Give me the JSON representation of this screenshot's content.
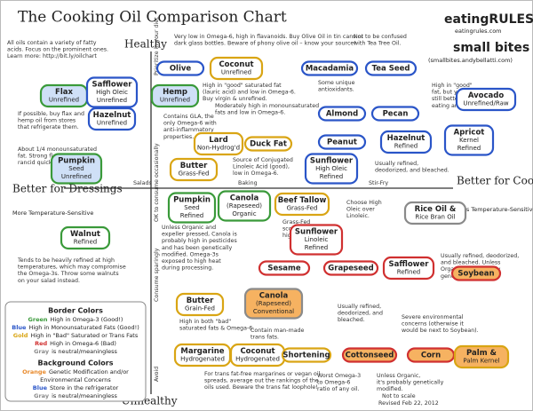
{
  "title": "The Cooking Oil Comparison Chart",
  "logos": {
    "brand1": "eatingRULES",
    "site1": "eatingrules.com",
    "brand2": "small bites",
    "site2": "(smallbites.andybellatti.com)"
  },
  "axes": {
    "top": "Healthy",
    "bottom": "Unhealthy",
    "left": "Better for Dressings",
    "left_sub": "More Temperature-Sensitive",
    "right": "Better for Cooking",
    "right_sub": "Less Temperature-Sensitive",
    "h_marks": [
      "Salads",
      "Baking",
      "Stir-Fry"
    ],
    "v_marks": [
      "Prioritize in your diet",
      "OK to consume occasionally",
      "Consume sparingly",
      "Avoid"
    ]
  },
  "nodes": [
    {
      "lines": [
        "Olive"
      ],
      "border": "blue",
      "fill": "white"
    },
    {
      "lines": [
        "Coconut",
        "Unrefined"
      ],
      "border": "gold",
      "fill": "white"
    },
    {
      "lines": [
        "Macadamia"
      ],
      "border": "blue",
      "fill": "white"
    },
    {
      "lines": [
        "Tea Seed"
      ],
      "border": "blue",
      "fill": "white"
    },
    {
      "lines": [
        "Flax",
        "Unrefined"
      ],
      "border": "green",
      "fill": "blue"
    },
    {
      "lines": [
        "Safflower",
        "High Oleic",
        "Unrefined"
      ],
      "border": "blue",
      "fill": "white"
    },
    {
      "lines": [
        "Hemp",
        "Unrefined"
      ],
      "border": "green",
      "fill": "blue"
    },
    {
      "lines": [
        "Hazelnut",
        "Unrefined"
      ],
      "border": "blue",
      "fill": "white"
    },
    {
      "lines": [
        "Avocado",
        "Unrefined/Raw"
      ],
      "border": "blue",
      "fill": "white"
    },
    {
      "lines": [
        "Almond"
      ],
      "border": "blue",
      "fill": "white"
    },
    {
      "lines": [
        "Pecan"
      ],
      "border": "blue",
      "fill": "white"
    },
    {
      "lines": [
        "Lard",
        "Non-Hydrog'd"
      ],
      "border": "gold",
      "fill": "white"
    },
    {
      "lines": [
        "Duck Fat"
      ],
      "border": "gold",
      "fill": "white"
    },
    {
      "lines": [
        "Peanut"
      ],
      "border": "blue",
      "fill": "white"
    },
    {
      "lines": [
        "Hazelnut",
        "Refined"
      ],
      "border": "blue",
      "fill": "white"
    },
    {
      "lines": [
        "Apricot",
        "Kernel",
        "Refined"
      ],
      "border": "blue",
      "fill": "white"
    },
    {
      "lines": [
        "Pumpkin",
        "Seed",
        "Unrefined"
      ],
      "border": "green",
      "fill": "blue"
    },
    {
      "lines": [
        "Butter",
        "Grass-Fed"
      ],
      "border": "gold",
      "fill": "white"
    },
    {
      "lines": [
        "Sunflower",
        "High Oleic",
        "Refined"
      ],
      "border": "blue",
      "fill": "white"
    },
    {
      "lines": [
        "Pumpkin",
        "Seed",
        "Refined"
      ],
      "border": "green",
      "fill": "white"
    },
    {
      "lines": [
        "Canola",
        "(Rapeseed)",
        "Organic"
      ],
      "border": "green",
      "fill": "white"
    },
    {
      "lines": [
        "Beef Tallow",
        "Grass-Fed"
      ],
      "border": "gold",
      "fill": "white"
    },
    {
      "lines": [
        "Rice Oil &",
        "Rice Bran Oil"
      ],
      "border": "gray",
      "fill": "white"
    },
    {
      "lines": [
        "Sunflower",
        "Linoleic",
        "Refined"
      ],
      "border": "red",
      "fill": "white"
    },
    {
      "lines": [
        "Walnut",
        "Refined"
      ],
      "border": "green",
      "fill": "white"
    },
    {
      "lines": [
        "Sesame"
      ],
      "border": "red",
      "fill": "white"
    },
    {
      "lines": [
        "Grapeseed"
      ],
      "border": "red",
      "fill": "white"
    },
    {
      "lines": [
        "Safflower",
        "Refined"
      ],
      "border": "red",
      "fill": "white"
    },
    {
      "lines": [
        "Soybean"
      ],
      "border": "red",
      "fill": "orange"
    },
    {
      "lines": [
        "Butter",
        "Grain-Fed"
      ],
      "border": "gold",
      "fill": "white"
    },
    {
      "lines": [
        "Canola",
        "(Rapeseed)",
        "Conventional"
      ],
      "border": "gray",
      "fill": "orange"
    },
    {
      "lines": [
        "Margarine",
        "Hydrogenated"
      ],
      "border": "gold",
      "fill": "white"
    },
    {
      "lines": [
        "Coconut",
        "Hydrogenated"
      ],
      "border": "gold",
      "fill": "white"
    },
    {
      "lines": [
        "Shortening"
      ],
      "border": "gold",
      "fill": "white"
    },
    {
      "lines": [
        "Cottonseed"
      ],
      "border": "red",
      "fill": "orange"
    },
    {
      "lines": [
        "Corn"
      ],
      "border": "red",
      "fill": "orange"
    },
    {
      "lines": [
        "Palm &",
        "Palm Kernel"
      ],
      "border": "gold",
      "fill": "orange"
    }
  ],
  "notes": [
    {
      "lines": [
        "All oils contain a variety of fatty",
        "acids. Focus on the prominent ones.",
        "Learn more: http://bit.ly/oilchart"
      ]
    },
    {
      "lines": [
        "Very low in Omega-6, high in flavanoids. Buy Olive Oil in tin cans or",
        "dark glass bottles. Beware of phony olive oil – know your source!"
      ]
    },
    {
      "lines": [
        "Not to be confused",
        "with Tea Tree Oil."
      ]
    },
    {
      "lines": [
        "Some unique",
        "antioxidants."
      ]
    },
    {
      "lines": [
        "High in \"good\" saturated fat",
        "(lauric acid) and low in Omega-6.",
        "Buy virgin & unrefined."
      ]
    },
    {
      "lines": [
        "High in \"good\"",
        "fat, but you've",
        "still better off",
        "eating an avocado."
      ]
    },
    {
      "lines": [
        "Moderately high in monounsaturated",
        "fats and low in Omega-6."
      ]
    },
    {
      "lines": [
        "If possible, buy flax and",
        "hemp oil from stores",
        "that refrigerate them."
      ]
    },
    {
      "lines": [
        "Contains GLA, the",
        "only Omega-6 with",
        "anti-inflammatory",
        "properties."
      ]
    },
    {
      "lines": [
        "About 1/4 monounsaturated",
        "fat. Strong flavor, goes",
        "rancid quickly."
      ]
    },
    {
      "lines": [
        "Source of Conjugated",
        "Linoleic Acid (good),",
        "low in Omega-6."
      ]
    },
    {
      "lines": [
        "Usually refined,",
        "deodorized, and bleached."
      ]
    },
    {
      "lines": [
        "Choose High",
        "Oleic over",
        "Linoleic."
      ]
    },
    {
      "lines": [
        "Unless Organic and",
        "expeller pressed, Canola is",
        "probably high in pesticides",
        "and has been genetically",
        "modified. Omega-3s",
        "exposed to high heat",
        "during processing."
      ]
    },
    {
      "lines": [
        "Grass-Fed",
        "scores slightly",
        "higher."
      ]
    },
    {
      "lines": [
        "Usually refined, deodorized,",
        "and bleached. Unless",
        "Organic, it's probably",
        "genetically modified."
      ]
    },
    {
      "lines": [
        "Tends to be heavily refined at high",
        "temperatures, which may compromise",
        "the Omega-3s. Throw some walnuts",
        "on your salad instead."
      ]
    },
    {
      "lines": [
        "Usually refined,",
        "deodorized, and",
        "bleached."
      ]
    },
    {
      "lines": [
        "Severe environmental",
        "concerns (otherwise it",
        "would be next to Soybean)."
      ]
    },
    {
      "lines": [
        "High in both \"bad\"",
        "saturated fats & Omega-6."
      ]
    },
    {
      "lines": [
        "Contain man-made",
        "trans fats."
      ]
    },
    {
      "lines": [
        "For trans fat-free margarines or vegan oil",
        "spreads, average out the rankings of the",
        "oils used. Beware the trans fat loophole!"
      ]
    },
    {
      "lines": [
        "Worst Omega-3",
        "to Omega-6",
        "ratio of any oil."
      ]
    },
    {
      "lines": [
        "Unless Organic,",
        "it's probably genetically",
        "modified."
      ]
    }
  ],
  "legend": {
    "border_title": "Border Colors",
    "border_items": [
      {
        "word": "Green",
        "text": "High in Omega-3 (Good!)",
        "color": "green"
      },
      {
        "word": "Blue",
        "text": "High in Monounsaturated Fats (Good!)",
        "color": "blue"
      },
      {
        "word": "Gold",
        "text": "High in \"Bad\" Saturated or Trans Fats",
        "color": "gold"
      },
      {
        "word": "Red",
        "text": "High in Omega-6 (Bad)",
        "color": "red"
      },
      {
        "word": "Gray",
        "text": "is neutral/meaningless",
        "color": "gray"
      }
    ],
    "background_title": "Background Colors",
    "background_items": [
      {
        "word": "Orange",
        "text": "Genetic Modification and/or",
        "color": "orange"
      },
      {
        "word": "",
        "text": "Environmental Concerns",
        "color": "orange"
      },
      {
        "word": "Blue",
        "text": "Store in the refrigerator",
        "color": "blue"
      },
      {
        "word": "Gray",
        "text": "is neutral/meaningless",
        "color": "gray"
      }
    ]
  },
  "footer": [
    "Not to scale",
    "Revised Feb 22, 2012"
  ]
}
